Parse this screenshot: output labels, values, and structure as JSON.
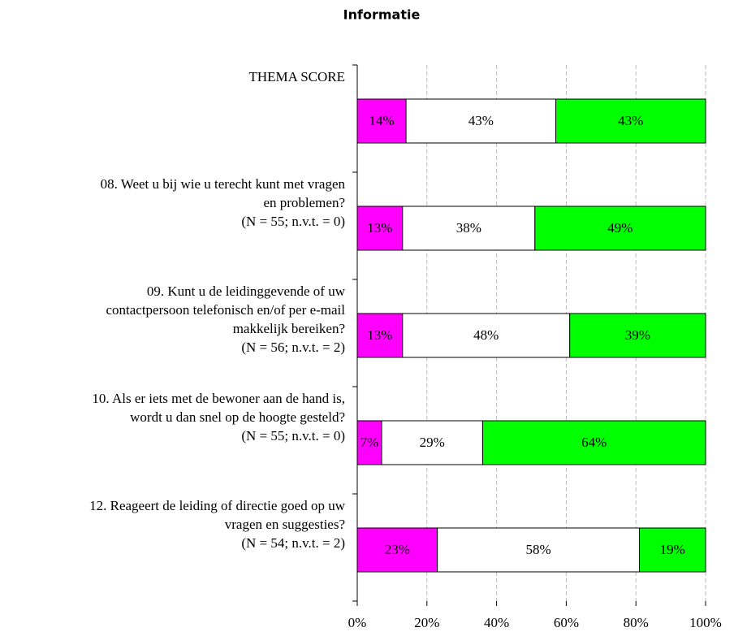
{
  "chart_data": {
    "type": "stacked-bar-horizontal",
    "title": "Informatie",
    "categories": [
      [
        "THEMA SCORE"
      ],
      [
        "08. Weet u bij wie u terecht kunt met vragen",
        "en problemen?",
        "(N = 55; n.v.t. = 0)"
      ],
      [
        "09. Kunt u de leidinggevende of uw",
        "contactpersoon telefonisch en/of per e-mail",
        "makkelijk bereiken?",
        "(N = 56; n.v.t. = 2)"
      ],
      [
        "10. Als er iets met de bewoner aan de hand is,",
        "wordt u dan snel op de hoogte gesteld?",
        "(N = 55; n.v.t. = 0)"
      ],
      [
        "12. Reageert de leiding of directie goed op uw",
        "vragen en suggesties?",
        "(N = 54; n.v.t. = 2)"
      ]
    ],
    "series": [
      {
        "color": "#ff00ff",
        "values": [
          14,
          13,
          13,
          7,
          23
        ],
        "value_labels": [
          "14%",
          "13%",
          "13%",
          "7%",
          "23%"
        ]
      },
      {
        "color": "#ffffff",
        "values": [
          43,
          38,
          48,
          29,
          58
        ],
        "value_labels": [
          "43%",
          "38%",
          "48%",
          "29%",
          "58%"
        ]
      },
      {
        "color": "#00ff00",
        "values": [
          43,
          49,
          39,
          64,
          19
        ],
        "value_labels": [
          "43%",
          "49%",
          "39%",
          "64%",
          "19%"
        ]
      }
    ],
    "xlim": [
      0,
      100
    ],
    "xticks": [
      {
        "value": 0,
        "label": "0%"
      },
      {
        "value": 20,
        "label": "20%"
      },
      {
        "value": 40,
        "label": "40%"
      },
      {
        "value": 60,
        "label": "60%"
      },
      {
        "value": 80,
        "label": "80%"
      },
      {
        "value": 100,
        "label": "100%"
      }
    ],
    "grid": true
  }
}
